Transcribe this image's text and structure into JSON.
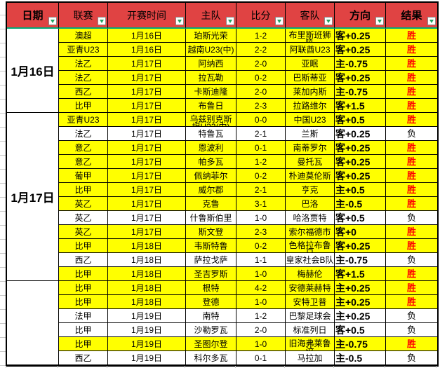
{
  "table": {
    "columns": [
      {
        "label": "日期"
      },
      {
        "label": "联赛"
      },
      {
        "label": "开赛时间"
      },
      {
        "label": "主队"
      },
      {
        "label": "比分"
      },
      {
        "label": "客队"
      },
      {
        "label": "方向"
      },
      {
        "label": "结果"
      }
    ],
    "date_groups": [
      {
        "label": "1月16日",
        "row_count": 6
      },
      {
        "label": "1月17日",
        "row_count": 12
      },
      {
        "label": "",
        "row_count": 6
      }
    ],
    "rows": [
      {
        "league": "澳超",
        "time": "1月16日",
        "home": "珀斯光荣",
        "score": "1-2",
        "away": "布里斯班狮吼",
        "direction": "客+0.25",
        "result": "胜",
        "win": true
      },
      {
        "league": "亚青U23",
        "time": "1月16日",
        "home": "越南U23(中)",
        "score": "2-2",
        "away": "阿联酋U23",
        "direction": "客+0.25",
        "result": "胜",
        "win": true
      },
      {
        "league": "法乙",
        "time": "1月17日",
        "home": "阿纳西",
        "score": "2-0",
        "away": "亚眠",
        "direction": "主-0.75",
        "result": "胜",
        "win": true
      },
      {
        "league": "法乙",
        "time": "1月17日",
        "home": "拉瓦勒",
        "score": "0-2",
        "away": "巴斯蒂亚",
        "direction": "客+0.25",
        "result": "胜",
        "win": true
      },
      {
        "league": "西乙",
        "time": "1月17日",
        "home": "卡斯迪隆",
        "score": "2-0",
        "away": "莱加内斯",
        "direction": "主-0.75",
        "result": "胜",
        "win": true
      },
      {
        "league": "比甲",
        "time": "1月17日",
        "home": "布鲁日",
        "score": "2-3",
        "away": "拉路维尔",
        "direction": "客+1.5",
        "result": "胜",
        "win": true
      },
      {
        "league": "亚青U23",
        "time": "1月17日",
        "home": "乌兹别克斯坦U23(中)",
        "score": "0-0",
        "away": "中国U23",
        "direction": "客+0.5",
        "result": "胜",
        "win": true
      },
      {
        "league": "法乙",
        "time": "1月17日",
        "home": "特鲁瓦",
        "score": "2-1",
        "away": "兰斯",
        "direction": "客+0.25",
        "result": "负",
        "win": false
      },
      {
        "league": "意乙",
        "time": "1月17日",
        "home": "恩波利",
        "score": "0-1",
        "away": "南蒂罗尔",
        "direction": "客+0.25",
        "result": "胜",
        "win": true
      },
      {
        "league": "意乙",
        "time": "1月17日",
        "home": "帕多瓦",
        "score": "1-2",
        "away": "曼托瓦",
        "direction": "客+0.25",
        "result": "胜",
        "win": true
      },
      {
        "league": "葡甲",
        "time": "1月17日",
        "home": "佩纳菲尔",
        "score": "0-2",
        "away": "朴迪莫伦斯",
        "direction": "客+0.25",
        "result": "胜",
        "win": true
      },
      {
        "league": "比甲",
        "time": "1月17日",
        "home": "威尔郡",
        "score": "2-1",
        "away": "亨克",
        "direction": "主+0.5",
        "result": "胜",
        "win": true
      },
      {
        "league": "英乙",
        "time": "1月17日",
        "home": "克鲁",
        "score": "3-1",
        "away": "巴洛",
        "direction": "主-0.5",
        "result": "胜",
        "win": true
      },
      {
        "league": "英乙",
        "time": "1月17日",
        "home": "什鲁斯伯里",
        "score": "1-0",
        "away": "哈洛贾特",
        "direction": "客+0.5",
        "result": "负",
        "win": false
      },
      {
        "league": "英乙",
        "time": "1月17日",
        "home": "斯文登",
        "score": "2-3",
        "away": "索尔福德市",
        "direction": "客+0",
        "result": "胜",
        "win": true
      },
      {
        "league": "比甲",
        "time": "1月18日",
        "home": "韦斯特鲁",
        "score": "0-2",
        "away": "色格拉布鲁日",
        "direction": "客+0.25",
        "result": "胜",
        "win": true
      },
      {
        "league": "西乙",
        "time": "1月18日",
        "home": "萨拉戈萨",
        "score": "1-1",
        "away": "皇家社会B队",
        "direction": "主-0.75",
        "result": "负",
        "win": false
      },
      {
        "league": "比甲",
        "time": "1月18日",
        "home": "圣吉罗斯",
        "score": "1-0",
        "away": "梅赫伦",
        "direction": "客+1.5",
        "result": "胜",
        "win": true
      },
      {
        "league": "比甲",
        "time": "1月18日",
        "home": "根特",
        "score": "4-2",
        "away": "安德莱赫特",
        "direction": "主+0.25",
        "result": "胜",
        "win": true
      },
      {
        "league": "比甲",
        "time": "1月18日",
        "home": "登德",
        "score": "1-0",
        "away": "安特卫普",
        "direction": "主+0.25",
        "result": "胜",
        "win": true
      },
      {
        "league": "法甲",
        "time": "1月19日",
        "home": "南特",
        "score": "1-2",
        "away": "巴黎足球会",
        "direction": "主+0.25",
        "result": "负",
        "win": false
      },
      {
        "league": "比甲",
        "time": "1月19日",
        "home": "沙勒罗瓦",
        "score": "2-0",
        "away": "标准列日",
        "direction": "客+0.5",
        "result": "负",
        "win": false
      },
      {
        "league": "比甲",
        "time": "1月19日",
        "home": "圣图尔登",
        "score": "1-0",
        "away": "旧海弗莱鲁汶",
        "direction": "主-0.75",
        "result": "胜",
        "win": true
      },
      {
        "league": "西乙",
        "time": "1月19日",
        "home": "科尔多瓦",
        "score": "0-1",
        "away": "马拉加",
        "direction": "主-0.5",
        "result": "负",
        "win": false
      }
    ]
  },
  "colors": {
    "header_bg": "#E04343",
    "row_win_bg": "#FFFF00",
    "row_lose_bg": "#FFFFFF",
    "result_win_text": "#FF0000",
    "header_underline": "#00A878",
    "filter_arrow": "#1FA463",
    "cell_border": "#000000"
  }
}
